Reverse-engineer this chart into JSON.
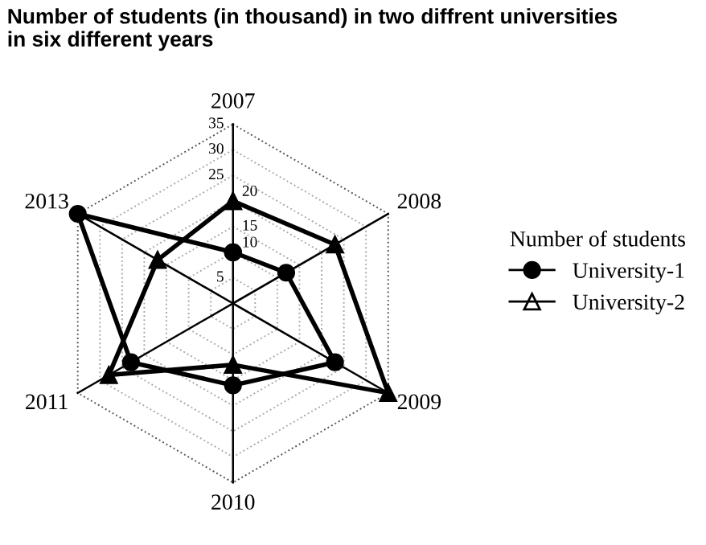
{
  "chart_data": {
    "type": "radar",
    "title": "Number of students (in thousand) in two diffrent universities\nin six different years",
    "categories": [
      "2007",
      "2008",
      "2009",
      "2010",
      "2011",
      "2013"
    ],
    "legend_title": "Number of students",
    "legend": "right",
    "grid": true,
    "ylim": [
      0,
      35
    ],
    "yticks": [
      5,
      10,
      15,
      20,
      25,
      30,
      35
    ],
    "series": [
      {
        "name": "University-1",
        "color": "#000000",
        "marker": "circle",
        "values": [
          10,
          12,
          23,
          16,
          23,
          35
        ]
      },
      {
        "name": "University-2",
        "color": "#000000",
        "marker": "triangle",
        "values": [
          20,
          23,
          35,
          12,
          28,
          17
        ]
      }
    ]
  }
}
